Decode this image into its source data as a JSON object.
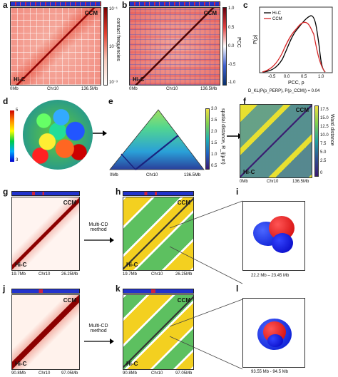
{
  "panels": {
    "a": "a",
    "b": "b",
    "c": "c",
    "d": "d",
    "e": "e",
    "f": "f",
    "g": "g",
    "h": "h",
    "i": "i",
    "j": "j",
    "k": "k",
    "l": "l"
  },
  "labels": {
    "ccm": "CCM",
    "hic": "Hi-C",
    "multi_cd": "Multi-CD\nmethod"
  },
  "chr10_full": {
    "left": "0Mb",
    "mid": "Chr10",
    "right": "136.5Mb"
  },
  "panel_a": {
    "colorbar_ticks": [
      "10⁻¹",
      "10⁻²",
      "10⁻³"
    ],
    "colorbar_label": "contact frequencies"
  },
  "panel_b": {
    "colorbar_ticks": [
      "1.0",
      "0.5",
      "0.0",
      "-0.5",
      "-1.0"
    ],
    "colorbar_label": "PCC"
  },
  "panel_c": {
    "ylabel": "P(ρ)",
    "xlabel": "PCC, ρ",
    "xticks": [
      "-0.5",
      "0.0",
      "0.5",
      "1.0"
    ],
    "legend": [
      "Hi-C",
      "CCM"
    ],
    "formula": "D_KL(P(ρ_PERP), P(ρ_CCM)) = 0.04",
    "colors": {
      "hic": "#000000",
      "ccm": "#d62728"
    }
  },
  "panel_d": {
    "scale_top": "5",
    "scale_bottom": "3"
  },
  "panel_e": {
    "colorbar_ticks": [
      "3.0",
      "2.5",
      "2.0",
      "1.5",
      "1.0",
      "0.5"
    ],
    "colorbar_label": "spatial distance, R_ij(µm)"
  },
  "panel_f": {
    "colorbar_ticks": [
      "17.5",
      "15.0",
      "12.5",
      "10.0",
      "7.5",
      "5.0",
      "2.5",
      "0"
    ],
    "colorbar_label": "Ward distance"
  },
  "panel_gh": {
    "left": "19.7Mb",
    "mid": "Chr10",
    "right": "26.25Mb"
  },
  "panel_i": {
    "range": "22.2 Mb – 23.45 Mb"
  },
  "panel_jk": {
    "left": "90.8Mb",
    "mid": "Chr10",
    "right": "97.05Mb"
  },
  "panel_l": {
    "range": "93.55 Mb - 94.5 Mb"
  }
}
